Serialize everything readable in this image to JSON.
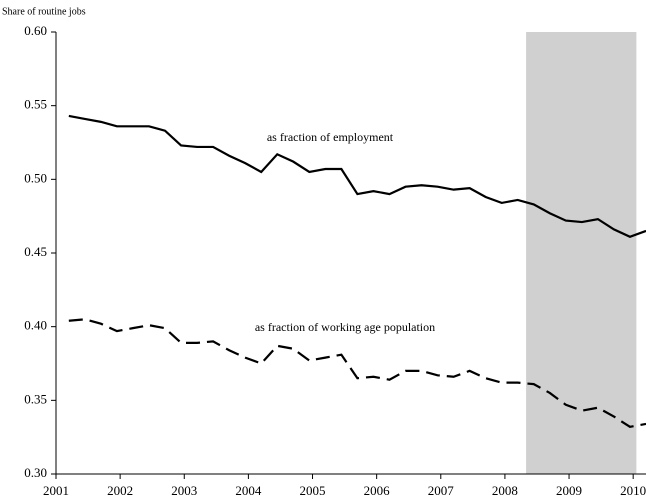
{
  "chart_data": {
    "type": "line",
    "y_label": "Share of routine jobs",
    "x": [
      2001.2,
      2001.45,
      2001.7,
      2001.95,
      2002.2,
      2002.45,
      2002.7,
      2002.95,
      2003.2,
      2003.45,
      2003.7,
      2003.95,
      2004.2,
      2004.45,
      2004.7,
      2004.95,
      2005.2,
      2005.45,
      2005.7,
      2005.95,
      2006.2,
      2006.45,
      2006.7,
      2006.95,
      2007.2,
      2007.45,
      2007.7,
      2007.95,
      2008.2,
      2008.45,
      2008.7,
      2008.95,
      2009.2,
      2009.45,
      2009.7,
      2009.95,
      2010.2
    ],
    "series": [
      {
        "name": "as fraction of employment",
        "color": "#000000",
        "dash": "solid",
        "values": [
          0.543,
          0.541,
          0.539,
          0.536,
          0.536,
          0.536,
          0.533,
          0.523,
          0.522,
          0.522,
          0.516,
          0.511,
          0.505,
          0.517,
          0.512,
          0.505,
          0.507,
          0.507,
          0.49,
          0.492,
          0.49,
          0.495,
          0.496,
          0.495,
          0.493,
          0.494,
          0.488,
          0.484,
          0.486,
          0.483,
          0.477,
          0.472,
          0.471,
          0.473,
          0.466,
          0.461,
          0.465
        ]
      },
      {
        "name": "as fraction of working age population",
        "color": "#000000",
        "dash": "dashed",
        "values": [
          0.404,
          0.405,
          0.402,
          0.397,
          0.399,
          0.401,
          0.399,
          0.389,
          0.389,
          0.39,
          0.384,
          0.379,
          0.375,
          0.387,
          0.385,
          0.377,
          0.379,
          0.381,
          0.365,
          0.366,
          0.364,
          0.37,
          0.37,
          0.367,
          0.366,
          0.37,
          0.365,
          0.362,
          0.362,
          0.361,
          0.355,
          0.347,
          0.343,
          0.345,
          0.339,
          0.332,
          0.334
        ]
      }
    ],
    "shaded_region": [
      2008.33,
      2010.05
    ],
    "shade_color": "#d0d0d0",
    "xlim": [
      2001,
      2010.2
    ],
    "xticks": [
      2001,
      2002,
      2003,
      2004,
      2005,
      2006,
      2007,
      2008,
      2009,
      2010
    ],
    "ylim": [
      0.3,
      0.6
    ],
    "yticks": [
      {
        "value": 0.3,
        "label": "0.30"
      },
      0.35,
      {
        "value": 0.4,
        "label": "0.40"
      },
      0.45,
      {
        "value": 0.5,
        "label": "0.50"
      },
      0.55,
      {
        "value": 0.6,
        "label": "0.60"
      }
    ]
  }
}
